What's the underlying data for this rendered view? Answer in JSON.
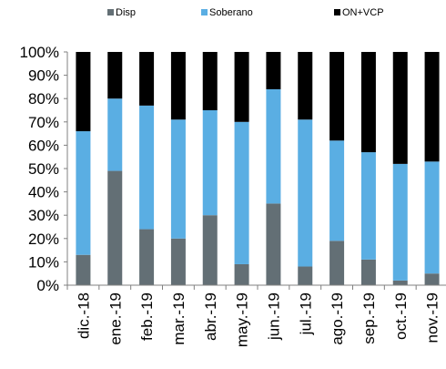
{
  "chart_data": {
    "type": "bar",
    "stacked": true,
    "categories": [
      "dic.-18",
      "ene.-19",
      "feb.-19",
      "mar.-19",
      "abr.-19",
      "may.-19",
      "jun.-19",
      "jul.-19",
      "ago.-19",
      "sep.-19",
      "oct.-19",
      "nov.-19"
    ],
    "series": [
      {
        "name": "Disp",
        "color": "#636f75",
        "values": [
          13,
          49,
          24,
          20,
          30,
          9,
          35,
          8,
          19,
          11,
          2,
          5
        ]
      },
      {
        "name": "Soberano",
        "color": "#5aaee3",
        "values": [
          53,
          31,
          53,
          51,
          45,
          61,
          49,
          63,
          43,
          46,
          50,
          48
        ]
      },
      {
        "name": "ON+VCP",
        "color": "#000000",
        "values": [
          34,
          20,
          23,
          29,
          25,
          30,
          16,
          29,
          38,
          43,
          48,
          47
        ]
      }
    ],
    "yticks": [
      "0%",
      "10%",
      "20%",
      "30%",
      "40%",
      "50%",
      "60%",
      "70%",
      "80%",
      "90%",
      "100%"
    ],
    "ylim": [
      0,
      100
    ],
    "legend_position": "top",
    "grid": false
  }
}
